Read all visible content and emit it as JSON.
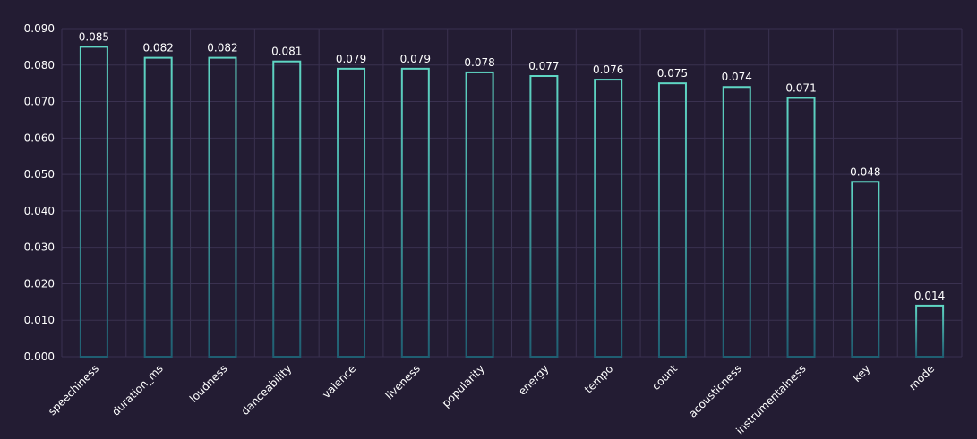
{
  "chart_data": {
    "type": "bar",
    "title": "",
    "xlabel": "",
    "ylabel": "",
    "categories": [
      "speechiness",
      "duration_ms",
      "loudness",
      "danceability",
      "valence",
      "liveness",
      "popularity",
      "energy",
      "tempo",
      "count",
      "acousticness",
      "instrumentalness",
      "key",
      "mode"
    ],
    "values": [
      0.085,
      0.082,
      0.082,
      0.081,
      0.079,
      0.079,
      0.078,
      0.077,
      0.076,
      0.075,
      0.074,
      0.071,
      0.048,
      0.014
    ],
    "value_labels": [
      "0.085",
      "0.082",
      "0.082",
      "0.081",
      "0.079",
      "0.079",
      "0.078",
      "0.077",
      "0.076",
      "0.075",
      "0.074",
      "0.071",
      "0.048",
      "0.014"
    ],
    "yticks": [
      "0.000",
      "0.010",
      "0.020",
      "0.030",
      "0.040",
      "0.050",
      "0.060",
      "0.070",
      "0.080",
      "0.090"
    ],
    "ylim": [
      0,
      0.09
    ],
    "grid": true,
    "legend": "none",
    "colors": {
      "background": "#231c33",
      "grid": "#3a3150",
      "bar_top": "#5fd6c4",
      "bar_bottom": "#1f5e72",
      "text": "#ffffff"
    }
  }
}
